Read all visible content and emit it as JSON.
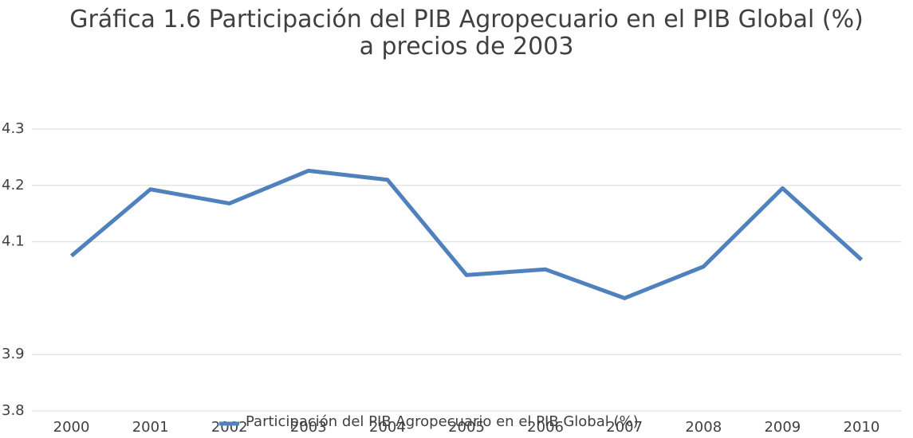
{
  "chart_data": {
    "type": "line",
    "title": "Gráfica 1.6 Participación del PIB Agropecuario en el PIB Global (%)",
    "subtitle": "a precios de 2003",
    "categories": [
      "2000",
      "2001",
      "2002",
      "2003",
      "2004",
      "2005",
      "2006",
      "2007",
      "2008",
      "2009",
      "2010"
    ],
    "series": [
      {
        "name": "Participación del PIB Agropecuario en el PIB Global (%)",
        "color": "#4f81bd",
        "values": [
          4.075,
          4.193,
          4.168,
          4.226,
          4.21,
          4.041,
          4.051,
          4.0,
          4.056,
          4.195,
          4.068
        ]
      }
    ],
    "ylim": [
      3.8,
      4.3
    ],
    "yticks": [
      3.8,
      3.9,
      4.1,
      4.2,
      4.3
    ],
    "grid": true,
    "legend": "bottom"
  }
}
